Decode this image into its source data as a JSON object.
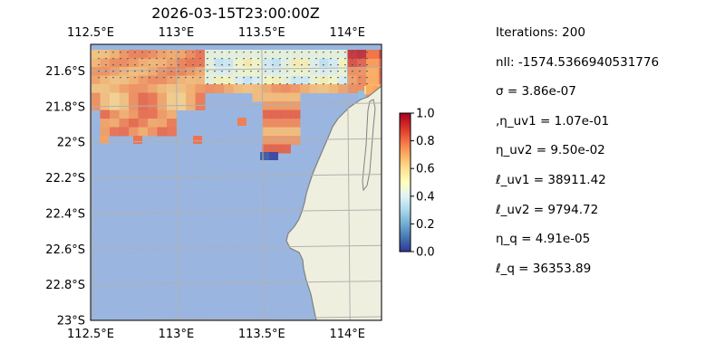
{
  "chart_data": {
    "type": "heatmap",
    "title": "2026-03-15T23:00:00Z",
    "x_ticks": [
      "112.5°E",
      "113°E",
      "113.5°E",
      "114°E"
    ],
    "x_tick_values": [
      112.5,
      113.0,
      113.5,
      114.0
    ],
    "y_ticks": [
      "21.6°S",
      "21.8°S",
      "22°S",
      "22.2°S",
      "22.4°S",
      "22.6°S",
      "22.8°S",
      "23°S"
    ],
    "y_tick_values": [
      -21.6,
      -21.8,
      -22.0,
      -22.2,
      -22.4,
      -22.6,
      -22.8,
      -23.0
    ],
    "xlim": [
      112.5,
      114.2
    ],
    "ylim": [
      -23.0,
      -21.45
    ],
    "grid": true,
    "colorbar": {
      "range": [
        0.0,
        1.0
      ],
      "ticks": [
        "0.0",
        "0.2",
        "0.4",
        "0.6",
        "0.8",
        "1.0"
      ],
      "colormap": "RdYlBu_r"
    },
    "colors": {
      "ocean": "#9ab6e0",
      "land": "#efefdf",
      "coast": "#808080",
      "grid": "#b0b0b0"
    }
  },
  "stats": [
    "Iterations: 200",
    "nll: -1574.5366940531776",
    "σ = 3.86e-07",
    ",η_uv1 = 1.07e-01",
    "η_uv2 = 9.50e-02",
    "ℓ_uv1 = 38911.42",
    "ℓ_uv2 = 9794.72",
    "η_q = 4.91e-05",
    "ℓ_q = 36353.89"
  ]
}
